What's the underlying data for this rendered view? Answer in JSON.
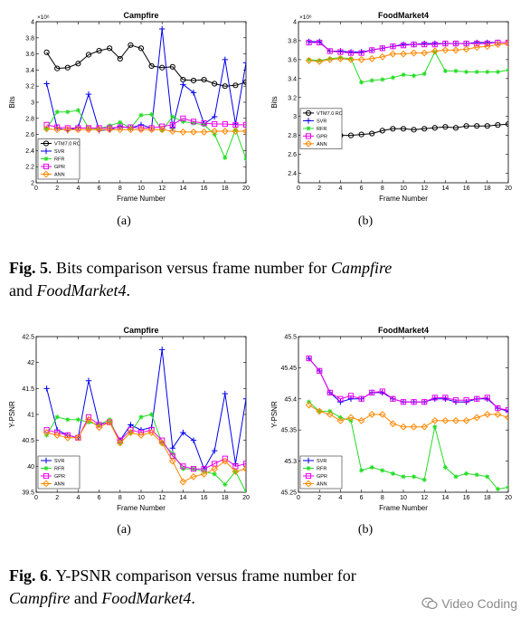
{
  "figures": [
    {
      "caption": {
        "label": "Fig. 5",
        "text_before": ". Bits comparison versus frame number for ",
        "em1": "Campfire",
        "text_mid": " and ",
        "em2": "FoodMarket4",
        "text_after": "."
      },
      "panels": [
        {
          "sublabel": "(a)"
        },
        {
          "sublabel": "(b)"
        }
      ]
    },
    {
      "caption": {
        "label": "Fig. 6",
        "text_before": ".  Y-PSNR comparison versus frame number for ",
        "em1": "Campfire",
        "text_mid": " and ",
        "em2": "FoodMarket4",
        "text_after": "."
      },
      "panels": [
        {
          "sublabel": "(a)"
        },
        {
          "sublabel": "(b)"
        }
      ]
    }
  ],
  "watermark": {
    "text": "Video Coding",
    "icon": "wechat-icon"
  },
  "chart_data": [
    {
      "id": "bits-campfire",
      "type": "line",
      "title": "Campfire",
      "xlabel": "Frame Number",
      "ylabel": "Bits",
      "yexp": "×10⁶",
      "xlim": [
        0,
        20
      ],
      "ylim": [
        2.0,
        4.0
      ],
      "xticks": [
        0,
        2,
        4,
        6,
        8,
        10,
        12,
        14,
        16,
        18,
        20
      ],
      "yticks": [
        2.0,
        2.2,
        2.4,
        2.6,
        2.8,
        3.0,
        3.2,
        3.4,
        3.6,
        3.8,
        4.0
      ],
      "ytick_labels": [
        "2",
        "2.2",
        "2.4",
        "2.6",
        "2.8",
        "3",
        "3.2",
        "3.4",
        "3.6",
        "3.8",
        "4"
      ],
      "legend": "bottom-left",
      "x": [
        1,
        2,
        3,
        4,
        5,
        6,
        7,
        8,
        9,
        10,
        11,
        12,
        13,
        14,
        15,
        16,
        17,
        18,
        19,
        20
      ],
      "series": [
        {
          "name": "VTM7.0 RC",
          "color": "#000000",
          "marker": "circle",
          "values": [
            3.62,
            3.42,
            3.43,
            3.48,
            3.59,
            3.64,
            3.67,
            3.54,
            3.71,
            3.67,
            3.45,
            3.43,
            3.44,
            3.28,
            3.27,
            3.28,
            3.23,
            3.2,
            3.21,
            3.25
          ]
        },
        {
          "name": "SVR",
          "color": "#0000ee",
          "marker": "plus",
          "values": [
            3.23,
            2.68,
            2.65,
            2.69,
            3.1,
            2.65,
            2.66,
            2.7,
            2.68,
            2.72,
            2.68,
            3.91,
            2.68,
            3.22,
            3.12,
            2.73,
            2.82,
            3.53,
            2.73,
            3.49
          ]
        },
        {
          "name": "RFR",
          "color": "#22dd22",
          "marker": "star",
          "values": [
            2.67,
            2.88,
            2.88,
            2.9,
            2.68,
            2.67,
            2.71,
            2.75,
            2.68,
            2.84,
            2.85,
            2.65,
            2.82,
            2.76,
            2.74,
            2.72,
            2.6,
            2.31,
            2.66,
            2.3
          ]
        },
        {
          "name": "GPR",
          "color": "#ee00ee",
          "marker": "square",
          "values": [
            2.72,
            2.69,
            2.68,
            2.68,
            2.68,
            2.68,
            2.68,
            2.69,
            2.69,
            2.68,
            2.68,
            2.7,
            2.72,
            2.8,
            2.76,
            2.74,
            2.73,
            2.73,
            2.72,
            2.72
          ]
        },
        {
          "name": "ANN",
          "color": "#ff8800",
          "marker": "diamond",
          "values": [
            2.67,
            2.66,
            2.66,
            2.66,
            2.66,
            2.66,
            2.66,
            2.66,
            2.66,
            2.66,
            2.66,
            2.66,
            2.64,
            2.63,
            2.63,
            2.63,
            2.64,
            2.64,
            2.64,
            2.64
          ]
        }
      ]
    },
    {
      "id": "bits-foodmarket4",
      "type": "line",
      "title": "FoodMarket4",
      "xlabel": "Frame Number",
      "ylabel": "Bits",
      "yexp": "×10⁶",
      "xlim": [
        0,
        20
      ],
      "ylim": [
        2.3,
        4.0
      ],
      "xticks": [
        0,
        2,
        4,
        6,
        8,
        10,
        12,
        14,
        16,
        18,
        20
      ],
      "yticks": [
        2.4,
        2.6,
        2.8,
        3.0,
        3.2,
        3.4,
        3.6,
        3.8,
        4.0
      ],
      "ytick_labels": [
        "2.4",
        "2.6",
        "2.8",
        "3",
        "3.2",
        "3.4",
        "3.6",
        "3.8",
        "4"
      ],
      "legend": "middle-left",
      "x": [
        1,
        2,
        3,
        4,
        5,
        6,
        7,
        8,
        9,
        10,
        11,
        12,
        13,
        14,
        15,
        16,
        17,
        18,
        19,
        20
      ],
      "series": [
        {
          "name": "VTM7.0 RC",
          "color": "#000000",
          "marker": "circle",
          "values": [
            2.8,
            2.8,
            2.8,
            2.8,
            2.8,
            2.81,
            2.82,
            2.85,
            2.87,
            2.87,
            2.86,
            2.87,
            2.88,
            2.89,
            2.88,
            2.9,
            2.9,
            2.9,
            2.91,
            2.92
          ]
        },
        {
          "name": "SVR",
          "color": "#0000ee",
          "marker": "plus",
          "values": [
            3.79,
            3.79,
            3.69,
            3.69,
            3.68,
            3.68,
            3.7,
            3.72,
            3.74,
            3.76,
            3.76,
            3.77,
            3.77,
            3.77,
            3.77,
            3.77,
            3.78,
            3.78,
            3.78,
            3.78
          ]
        },
        {
          "name": "RFR",
          "color": "#22dd22",
          "marker": "star",
          "values": [
            3.6,
            3.59,
            3.61,
            3.62,
            3.61,
            3.36,
            3.38,
            3.39,
            3.41,
            3.44,
            3.43,
            3.45,
            3.68,
            3.48,
            3.48,
            3.47,
            3.47,
            3.47,
            3.47,
            3.49
          ]
        },
        {
          "name": "GPR",
          "color": "#ee00ee",
          "marker": "square",
          "values": [
            3.78,
            3.78,
            3.69,
            3.68,
            3.67,
            3.67,
            3.7,
            3.72,
            3.74,
            3.75,
            3.76,
            3.76,
            3.76,
            3.77,
            3.77,
            3.77,
            3.77,
            3.77,
            3.78,
            3.78
          ]
        },
        {
          "name": "ANN",
          "color": "#ff8800",
          "marker": "diamond",
          "values": [
            3.59,
            3.58,
            3.6,
            3.61,
            3.6,
            3.6,
            3.61,
            3.63,
            3.66,
            3.66,
            3.67,
            3.67,
            3.69,
            3.7,
            3.7,
            3.71,
            3.73,
            3.74,
            3.76,
            3.77
          ]
        }
      ]
    },
    {
      "id": "psnr-campfire",
      "type": "line",
      "title": "Campfire",
      "xlabel": "Frame Number",
      "ylabel": "Y-PSNR",
      "xlim": [
        0,
        20
      ],
      "ylim": [
        39.5,
        42.5
      ],
      "xticks": [
        0,
        2,
        4,
        6,
        8,
        10,
        12,
        14,
        16,
        18,
        20
      ],
      "yticks": [
        39.5,
        40.0,
        40.5,
        41.0,
        41.5,
        42.0,
        42.5
      ],
      "ytick_labels": [
        "39.5",
        "40",
        "40.5",
        "41",
        "41.5",
        "42",
        "42.5"
      ],
      "legend": "bottom-left",
      "x": [
        1,
        2,
        3,
        4,
        5,
        6,
        7,
        8,
        9,
        10,
        11,
        12,
        13,
        14,
        15,
        16,
        17,
        18,
        19,
        20
      ],
      "series": [
        {
          "name": "SVR",
          "color": "#0000ee",
          "marker": "plus",
          "values": [
            41.5,
            40.7,
            40.6,
            40.55,
            41.65,
            40.8,
            40.85,
            40.5,
            40.8,
            40.7,
            40.75,
            42.25,
            40.35,
            40.65,
            40.5,
            39.95,
            40.3,
            41.4,
            40.05,
            41.3
          ]
        },
        {
          "name": "RFR",
          "color": "#22dd22",
          "marker": "star",
          "values": [
            40.6,
            40.95,
            40.9,
            40.9,
            40.85,
            40.8,
            40.9,
            40.45,
            40.65,
            40.95,
            41.0,
            40.45,
            40.25,
            39.95,
            39.95,
            39.9,
            39.85,
            39.65,
            39.9,
            39.5
          ]
        },
        {
          "name": "GPR",
          "color": "#ee00ee",
          "marker": "square",
          "values": [
            40.7,
            40.65,
            40.6,
            40.55,
            40.95,
            40.8,
            40.85,
            40.5,
            40.7,
            40.65,
            40.7,
            40.5,
            40.2,
            40.0,
            39.95,
            39.95,
            40.05,
            40.15,
            40.0,
            40.05
          ]
        },
        {
          "name": "ANN",
          "color": "#ff8800",
          "marker": "diamond",
          "values": [
            40.65,
            40.6,
            40.55,
            40.55,
            40.9,
            40.75,
            40.85,
            40.45,
            40.65,
            40.6,
            40.65,
            40.45,
            40.1,
            39.7,
            39.8,
            39.85,
            39.95,
            40.1,
            39.9,
            39.95
          ]
        }
      ]
    },
    {
      "id": "psnr-foodmarket4",
      "type": "line",
      "title": "FoodMarket4",
      "xlabel": "Frame Number",
      "ylabel": "Y-PSNR",
      "xlim": [
        0,
        20
      ],
      "ylim": [
        45.25,
        45.5
      ],
      "xticks": [
        0,
        2,
        4,
        6,
        8,
        10,
        12,
        14,
        16,
        18,
        20
      ],
      "yticks": [
        45.25,
        45.3,
        45.35,
        45.4,
        45.45,
        45.5
      ],
      "ytick_labels": [
        "45.25",
        "45.3",
        "45.35",
        "45.4",
        "45.45",
        "45.5"
      ],
      "legend": "bottom-left",
      "x": [
        1,
        2,
        3,
        4,
        5,
        6,
        7,
        8,
        9,
        10,
        11,
        12,
        13,
        14,
        15,
        16,
        17,
        18,
        19,
        20
      ],
      "series": [
        {
          "name": "SVR",
          "color": "#0000ee",
          "marker": "plus",
          "values": [
            45.465,
            45.445,
            45.41,
            45.395,
            45.4,
            45.4,
            45.41,
            45.41,
            45.4,
            45.395,
            45.395,
            45.395,
            45.4,
            45.4,
            45.395,
            45.395,
            45.4,
            45.4,
            45.385,
            45.38
          ]
        },
        {
          "name": "RFR",
          "color": "#22dd22",
          "marker": "star",
          "values": [
            45.395,
            45.38,
            45.38,
            45.37,
            45.365,
            45.285,
            45.29,
            45.285,
            45.28,
            45.275,
            45.275,
            45.27,
            45.355,
            45.29,
            45.275,
            45.28,
            45.278,
            45.275,
            45.255,
            45.258
          ]
        },
        {
          "name": "GPR",
          "color": "#ee00ee",
          "marker": "square",
          "values": [
            45.465,
            45.445,
            45.41,
            45.4,
            45.405,
            45.4,
            45.41,
            45.412,
            45.4,
            45.395,
            45.395,
            45.395,
            45.402,
            45.402,
            45.398,
            45.398,
            45.4,
            45.402,
            45.385,
            45.382
          ]
        },
        {
          "name": "ANN",
          "color": "#ff8800",
          "marker": "diamond",
          "values": [
            45.39,
            45.38,
            45.375,
            45.365,
            45.37,
            45.365,
            45.375,
            45.375,
            45.36,
            45.355,
            45.355,
            45.355,
            45.365,
            45.365,
            45.365,
            45.365,
            45.37,
            45.375,
            45.375,
            45.37
          ]
        }
      ]
    }
  ]
}
